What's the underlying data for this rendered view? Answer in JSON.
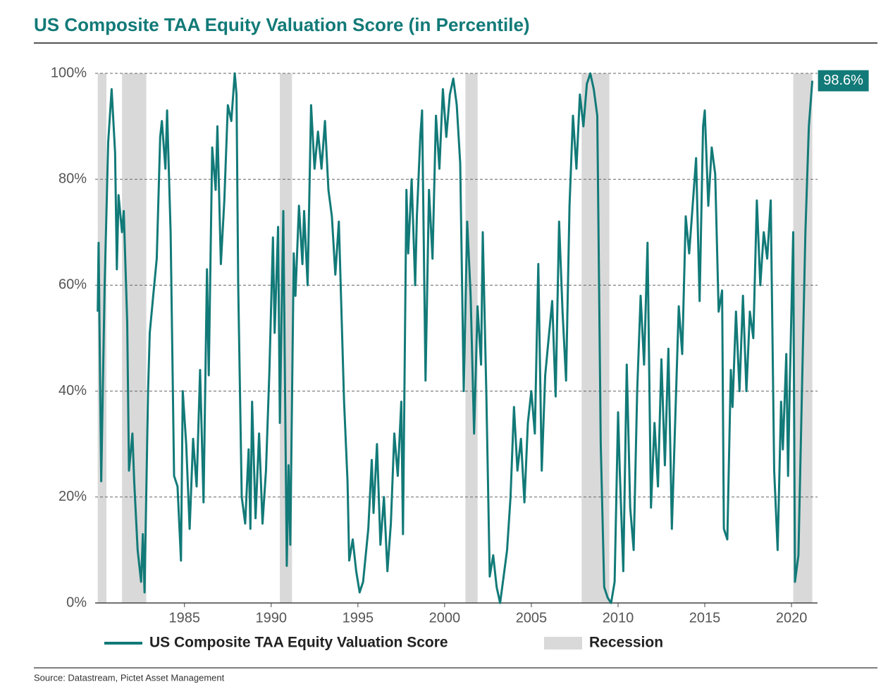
{
  "chart_data": {
    "type": "line",
    "title": "US Composite TAA Equity Valuation Score (in Percentile)",
    "source": "Source: Datastream, Pictet Asset Management",
    "annotation": "98.6%",
    "recession_name": "Recession",
    "recession_color": "#d9d9d9",
    "recessions": [
      [
        1980.0,
        1980.5
      ],
      [
        1981.4,
        1982.8
      ],
      [
        1990.5,
        1991.2
      ],
      [
        2001.2,
        2001.9
      ],
      [
        2007.9,
        2009.5
      ],
      [
        2020.1,
        2021.2
      ]
    ],
    "xlim": [
      1979.85,
      2021.5
    ],
    "xticks": [
      1985,
      1990,
      1995,
      2000,
      2005,
      2010,
      2015,
      2020
    ],
    "ylim": [
      0,
      100
    ],
    "yticks": [
      {
        "value": 0,
        "label": "0%"
      },
      {
        "value": 20,
        "label": "20%"
      },
      {
        "value": 40,
        "label": "40%"
      },
      {
        "value": 60,
        "label": "60%"
      },
      {
        "value": 80,
        "label": "80%"
      },
      {
        "value": 100,
        "label": "100%"
      }
    ],
    "grid": true,
    "x": [
      1980.0,
      1980.05,
      1980.2,
      1980.4,
      1980.6,
      1980.8,
      1981.0,
      1981.1,
      1981.2,
      1981.4,
      1981.5,
      1981.7,
      1981.8,
      1982.0,
      1982.1,
      1982.3,
      1982.5,
      1982.6,
      1982.7,
      1982.9,
      1983.0,
      1983.2,
      1983.4,
      1983.6,
      1983.7,
      1983.9,
      1984.0,
      1984.2,
      1984.4,
      1984.6,
      1984.8,
      1984.9,
      1985.1,
      1985.3,
      1985.5,
      1985.7,
      1985.9,
      1986.1,
      1986.3,
      1986.4,
      1986.6,
      1986.8,
      1986.9,
      1987.1,
      1987.3,
      1987.5,
      1987.7,
      1987.9,
      1988.0,
      1988.1,
      1988.3,
      1988.5,
      1988.7,
      1988.8,
      1988.9,
      1989.1,
      1989.3,
      1989.5,
      1989.7,
      1989.9,
      1990.1,
      1990.2,
      1990.4,
      1990.5,
      1990.7,
      1990.9,
      1991.0,
      1991.1,
      1991.3,
      1991.4,
      1991.6,
      1991.8,
      1991.9,
      1992.1,
      1992.3,
      1992.5,
      1992.7,
      1992.9,
      1993.1,
      1993.3,
      1993.5,
      1993.7,
      1993.9,
      1994.2,
      1994.4,
      1994.5,
      1994.7,
      1994.9,
      1995.1,
      1995.3,
      1995.6,
      1995.8,
      1995.9,
      1996.1,
      1996.3,
      1996.5,
      1996.7,
      1996.9,
      1997.1,
      1997.3,
      1997.5,
      1997.6,
      1997.8,
      1997.9,
      1998.1,
      1998.3,
      1998.4,
      1998.6,
      1998.7,
      1998.9,
      1999.1,
      1999.3,
      1999.5,
      1999.7,
      1999.9,
      2000.1,
      2000.3,
      2000.5,
      2000.7,
      2000.9,
      2001.1,
      2001.3,
      2001.5,
      2001.7,
      2001.9,
      2002.1,
      2002.2,
      2002.4,
      2002.6,
      2002.8,
      2003.0,
      2003.2,
      2003.4,
      2003.6,
      2003.8,
      2004.0,
      2004.2,
      2004.4,
      2004.6,
      2004.8,
      2005.0,
      2005.2,
      2005.4,
      2005.6,
      2005.8,
      2006.0,
      2006.2,
      2006.4,
      2006.6,
      2006.8,
      2007.0,
      2007.2,
      2007.4,
      2007.6,
      2007.8,
      2008.0,
      2008.2,
      2008.4,
      2008.6,
      2008.8,
      2009.0,
      2009.2,
      2009.4,
      2009.6,
      2009.8,
      2010.0,
      2010.1,
      2010.3,
      2010.5,
      2010.7,
      2010.9,
      2011.1,
      2011.3,
      2011.5,
      2011.7,
      2011.9,
      2012.1,
      2012.3,
      2012.5,
      2012.7,
      2012.9,
      2013.1,
      2013.3,
      2013.5,
      2013.7,
      2013.9,
      2014.1,
      2014.3,
      2014.5,
      2014.7,
      2014.9,
      2015.0,
      2015.2,
      2015.4,
      2015.6,
      2015.8,
      2016.0,
      2016.1,
      2016.3,
      2016.5,
      2016.6,
      2016.8,
      2017.0,
      2017.2,
      2017.4,
      2017.6,
      2017.8,
      2018.0,
      2018.2,
      2018.4,
      2018.6,
      2018.8,
      2019.0,
      2019.2,
      2019.4,
      2019.5,
      2019.7,
      2019.8,
      2019.9,
      2020.1,
      2020.2,
      2020.4,
      2020.6,
      2020.8,
      2021.0,
      2021.2
    ],
    "series": [
      {
        "name": "US Composite TAA Equity Valuation Score",
        "color": "#127a78",
        "values": [
          55,
          68,
          23,
          60,
          87,
          97,
          85,
          63,
          77,
          70,
          74,
          53,
          25,
          32,
          23,
          10,
          4,
          13,
          2,
          40,
          51,
          58,
          65,
          88,
          91,
          82,
          93,
          70,
          24,
          22,
          8,
          40,
          30,
          14,
          31,
          22,
          44,
          19,
          63,
          43,
          86,
          78,
          90,
          64,
          76,
          94,
          91,
          100,
          96,
          60,
          20,
          15,
          29,
          14,
          38,
          16,
          32,
          15,
          25,
          44,
          69,
          51,
          71,
          34,
          74,
          7,
          26,
          11,
          66,
          58,
          75,
          64,
          74,
          60,
          94,
          82,
          89,
          82,
          91,
          78,
          73,
          62,
          72,
          38,
          23,
          8,
          12,
          6,
          2,
          4,
          14,
          27,
          17,
          30,
          11,
          20,
          6,
          15,
          32,
          24,
          38,
          13,
          78,
          66,
          80,
          60,
          73,
          88,
          93,
          42,
          78,
          65,
          92,
          82,
          97,
          88,
          96,
          99,
          94,
          83,
          40,
          72,
          58,
          32,
          56,
          45,
          70,
          40,
          5,
          9,
          3,
          0,
          5,
          10,
          20,
          37,
          25,
          31,
          19,
          34,
          40,
          32,
          64,
          25,
          43,
          50,
          57,
          39,
          72,
          55,
          42,
          75,
          92,
          82,
          96,
          90,
          98,
          100,
          97,
          92,
          30,
          3,
          1,
          0,
          4,
          36,
          25,
          6,
          45,
          18,
          10,
          40,
          58,
          45,
          68,
          18,
          34,
          22,
          46,
          26,
          48,
          14,
          35,
          56,
          47,
          73,
          66,
          75,
          84,
          57,
          90,
          93,
          75,
          86,
          81,
          55,
          59,
          14,
          12,
          44,
          37,
          55,
          40,
          58,
          40,
          55,
          50,
          76,
          60,
          70,
          65,
          76,
          25,
          10,
          38,
          29,
          47,
          24,
          41,
          70,
          4,
          9,
          40,
          70,
          90,
          98.6
        ]
      }
    ]
  }
}
